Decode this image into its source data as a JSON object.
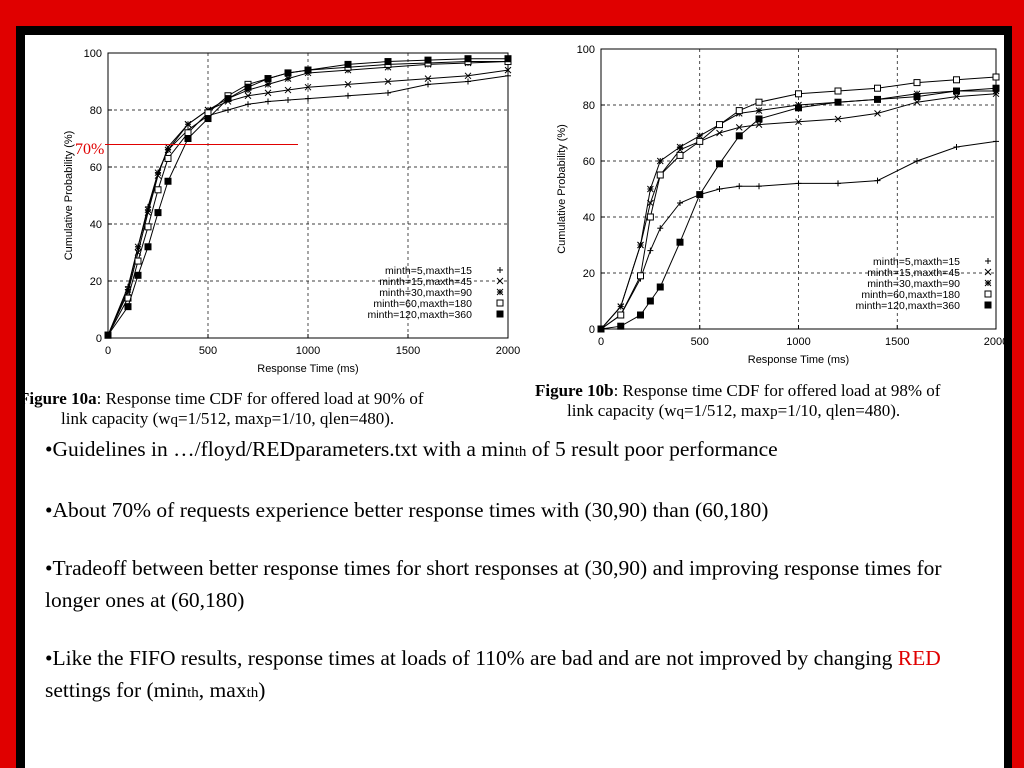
{
  "slide": {
    "marker_70": "70%",
    "captions": {
      "fig10a": {
        "label": "Figure 10a",
        "line1": ": Response time CDF for offered load at 90% of",
        "line2": "link capacity (w",
        "line2_sub": "q",
        "line2_b": "=1/512, max",
        "line2_sub2": "p",
        "line2_c": "=1/10, qlen=480)."
      },
      "fig10b": {
        "label": "Figure 10b",
        "line1": ": Response time CDF for offered load at 98% of",
        "line2": "link capacity (w",
        "line2_sub": "q",
        "line2_b": "=1/512, max",
        "line2_sub2": "p",
        "line2_c": "=1/10, qlen=480)."
      }
    },
    "bullets": {
      "b1_a": "•Guidelines in …/floyd/REDparameters.txt with a min",
      "b1_sub": "th",
      "b1_b": " of 5 result poor performance",
      "b2": "•About 70% of requests experience better response times with (30,90) than (60,180)",
      "b3": "•Tradeoff between better response times for short responses at (30,90) and improving response times for longer ones at (60,180)",
      "b4_a": "•Like the FIFO results, response times at loads of 110% are bad and are not improved by changing ",
      "b4_red": "RED",
      "b4_b": " settings for (min",
      "b4_sub1": "th",
      "b4_c": ", max",
      "b4_sub2": "th",
      "b4_d": ")"
    }
  },
  "chart_data": [
    {
      "type": "line",
      "xlabel": "Response Time (ms)",
      "ylabel": "Cumulative Probability (%)",
      "xlim": [
        0,
        2000
      ],
      "ylim": [
        0,
        100
      ],
      "xticks": [
        0,
        500,
        1000,
        1500,
        2000
      ],
      "yticks": [
        0,
        20,
        40,
        60,
        80,
        100
      ],
      "grid": "dashed at 500, 1000, 1500 and 20, 40, 60, 80",
      "legend_position": "bottom-right",
      "x": [
        0,
        100,
        150,
        200,
        250,
        300,
        400,
        500,
        600,
        700,
        800,
        900,
        1000,
        1200,
        1400,
        1600,
        1800,
        2000
      ],
      "series": [
        {
          "name": "minth=5,maxth=15",
          "marker": "+",
          "values": [
            1,
            18,
            32,
            46,
            58,
            66,
            73,
            78,
            80,
            82,
            83,
            83.5,
            84,
            85,
            86,
            89,
            90,
            92
          ]
        },
        {
          "name": "minth=15,maxth=45",
          "marker": "x",
          "values": [
            1,
            16,
            30,
            44,
            57,
            67,
            75,
            80,
            83,
            85,
            86,
            87,
            88,
            89,
            90,
            91,
            92,
            94
          ]
        },
        {
          "name": "minth=30,maxth=90",
          "marker": "*",
          "values": [
            1,
            17,
            32,
            45,
            58,
            66,
            75,
            80,
            84,
            87,
            89,
            91,
            93,
            94,
            95,
            96,
            96.5,
            97
          ]
        },
        {
          "name": "minth=60,maxth=180",
          "marker": "square",
          "values": [
            1,
            14,
            27,
            39,
            52,
            63,
            72,
            79,
            85,
            89,
            91,
            93,
            94,
            95,
            96,
            96.5,
            97,
            97
          ]
        },
        {
          "name": "minth=120,maxth=360",
          "marker": "filled-square",
          "values": [
            1,
            11,
            22,
            32,
            44,
            55,
            70,
            77,
            84,
            88,
            91,
            93,
            94,
            96,
            97,
            97.5,
            98,
            98
          ]
        }
      ]
    },
    {
      "type": "line",
      "xlabel": "Response Time (ms)",
      "ylabel": "Cumulative Probability (%)",
      "xlim": [
        0,
        2000
      ],
      "ylim": [
        0,
        100
      ],
      "xticks": [
        0,
        500,
        1000,
        1500,
        2000
      ],
      "yticks": [
        0,
        20,
        40,
        60,
        80,
        100
      ],
      "grid": "dashed at 500, 1000, 1500 and 20, 40, 60, 80",
      "legend_position": "bottom-right",
      "x": [
        0,
        100,
        200,
        250,
        300,
        400,
        500,
        600,
        700,
        800,
        1000,
        1200,
        1400,
        1600,
        1800,
        2000
      ],
      "series": [
        {
          "name": "minth=5,maxth=15",
          "marker": "+",
          "values": [
            0,
            5,
            18,
            28,
            36,
            45,
            48,
            50,
            51,
            51,
            52,
            52,
            53,
            60,
            65,
            67
          ]
        },
        {
          "name": "minth=15,maxth=45",
          "marker": "x",
          "values": [
            0,
            8,
            30,
            45,
            55,
            64,
            67,
            70,
            72,
            73,
            74,
            75,
            77,
            81,
            83,
            84
          ]
        },
        {
          "name": "minth=30,maxth=90",
          "marker": "*",
          "values": [
            0,
            8,
            30,
            50,
            60,
            65,
            69,
            73,
            77,
            78,
            80,
            81,
            82,
            84,
            85,
            85
          ]
        },
        {
          "name": "minth=60,maxth=180",
          "marker": "square",
          "values": [
            0,
            5,
            19,
            40,
            55,
            62,
            67,
            73,
            78,
            81,
            84,
            85,
            86,
            88,
            89,
            90
          ]
        },
        {
          "name": "minth=120,maxth=360",
          "marker": "filled-square",
          "values": [
            0,
            1,
            5,
            10,
            15,
            31,
            48,
            59,
            69,
            75,
            79,
            81,
            82,
            83,
            85,
            86
          ]
        }
      ]
    }
  ]
}
